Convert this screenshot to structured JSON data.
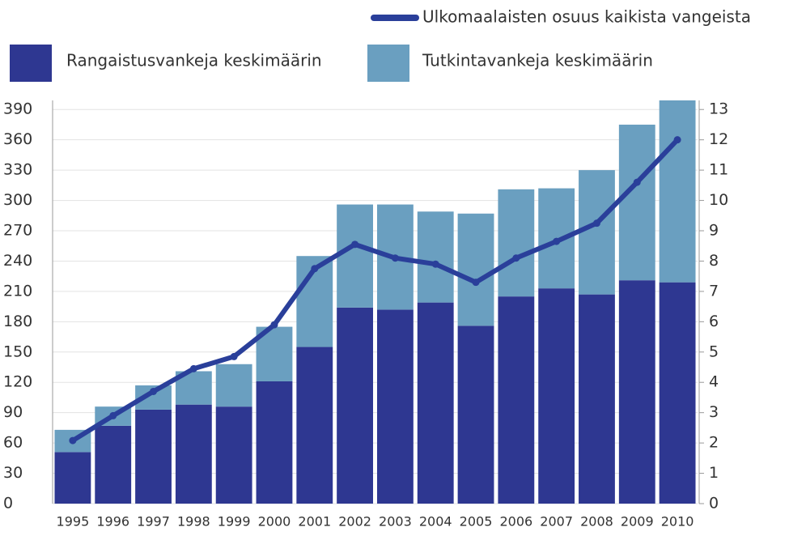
{
  "chart_data": {
    "type": "bar",
    "categories": [
      "1995",
      "1996",
      "1997",
      "1998",
      "1999",
      "2000",
      "2001",
      "2002",
      "2003",
      "2004",
      "2005",
      "2006",
      "2007",
      "2008",
      "2009",
      "2010"
    ],
    "series": [
      {
        "name": "Rangaistusvankeja keskimäärin",
        "color": "#2e3791",
        "values": [
          51,
          77,
          93,
          98,
          96,
          121,
          155,
          194,
          192,
          199,
          176,
          205,
          213,
          207,
          221,
          219
        ]
      },
      {
        "name": "Tutkintavankeja keskimäärin",
        "color": "#6a9fc0",
        "values": [
          22,
          19,
          24,
          33,
          42,
          54,
          90,
          102,
          104,
          90,
          111,
          106,
          99,
          123,
          154,
          180
        ]
      },
      {
        "name": "Ulkomaalaisten osuus kaikista vangeista",
        "color": "#2a3f9a",
        "type": "line",
        "axis": "y2",
        "values": [
          2.08,
          2.9,
          3.7,
          4.45,
          4.85,
          5.9,
          7.75,
          8.55,
          8.1,
          7.9,
          7.3,
          8.1,
          8.65,
          9.25,
          10.6,
          12.0
        ]
      }
    ],
    "ylim": [
      0,
      399
    ],
    "yticks": [
      0,
      30,
      60,
      90,
      120,
      150,
      180,
      210,
      240,
      270,
      300,
      330,
      360,
      390
    ],
    "y2lim": [
      0,
      13.3
    ],
    "y2ticks": [
      0,
      1,
      2,
      3,
      4,
      5,
      6,
      7,
      8,
      9,
      10,
      11,
      12,
      13
    ],
    "grid": true,
    "stacked": true
  }
}
